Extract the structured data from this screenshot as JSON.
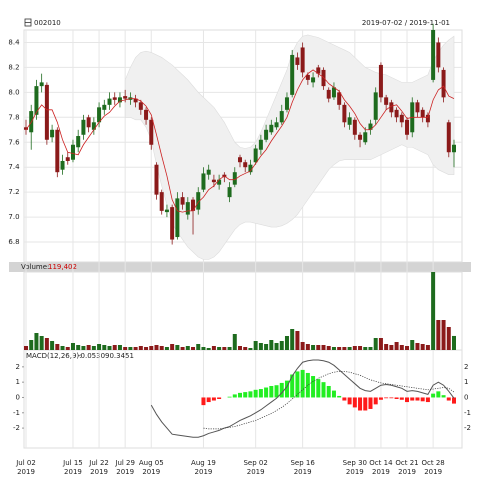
{
  "chart_data": {
    "type": "candlestick",
    "title": "002010",
    "subtitle": "2019-07-02 / 2019-11-01",
    "categories": [
      [
        "Jul 02",
        "2019"
      ],
      null,
      null,
      null,
      null,
      null,
      null,
      null,
      null,
      [
        "Jul 15",
        "2019"
      ],
      null,
      null,
      null,
      null,
      [
        "Jul 22",
        "2019"
      ],
      null,
      null,
      null,
      null,
      [
        "Jul 29",
        "2019"
      ],
      null,
      null,
      null,
      null,
      [
        "Aug 05",
        "2019"
      ],
      null,
      null,
      null,
      null,
      null,
      null,
      null,
      null,
      null,
      [
        "Aug 19",
        "2019"
      ],
      null,
      null,
      null,
      null,
      null,
      null,
      null,
      null,
      null,
      [
        "Sep 02",
        "2019"
      ],
      null,
      null,
      null,
      null,
      null,
      null,
      null,
      null,
      [
        "Sep 16",
        "2019"
      ],
      null,
      null,
      null,
      null,
      null,
      null,
      null,
      null,
      null,
      [
        "Sep 30",
        "2019"
      ],
      null,
      null,
      null,
      null,
      [
        "Oct 14",
        "2019"
      ],
      null,
      null,
      null,
      null,
      [
        "Oct 21",
        "2019"
      ],
      null,
      null,
      null,
      null,
      [
        "Oct 28",
        "2019"
      ],
      null,
      null,
      null,
      null
    ],
    "open": [
      7.72,
      7.68,
      7.82,
      8.05,
      8.06,
      7.64,
      7.7,
      7.38,
      7.48,
      7.46,
      7.56,
      7.66,
      7.8,
      7.7,
      7.76,
      7.86,
      7.9,
      7.96,
      7.92,
      7.97,
      7.94,
      7.95,
      7.92,
      7.86,
      7.78,
      7.42,
      7.2,
      7.04,
      7.08,
      6.84,
      7.16,
      7.02,
      7.14,
      7.06,
      7.22,
      7.34,
      7.3,
      7.26,
      7.34,
      7.16,
      7.26,
      7.48,
      7.44,
      7.36,
      7.44,
      7.54,
      7.62,
      7.68,
      7.72,
      7.76,
      7.86,
      7.98,
      8.28,
      8.36,
      8.14,
      8.08,
      8.2,
      8.18,
      8.02,
      7.96,
      8.0,
      7.9,
      7.74,
      7.78,
      7.66,
      7.6,
      7.7,
      7.78,
      8.22,
      7.96,
      7.92,
      7.86,
      7.82,
      7.78,
      7.68,
      7.92,
      7.86,
      7.82,
      8.1,
      8.4,
      8.18,
      7.76,
      7.52
    ],
    "high": [
      7.78,
      7.9,
      8.1,
      8.15,
      8.08,
      7.74,
      7.72,
      7.5,
      7.52,
      7.62,
      7.7,
      7.82,
      7.82,
      7.8,
      7.92,
      7.94,
      8.0,
      8.0,
      8.0,
      8.02,
      8.0,
      7.98,
      7.94,
      7.88,
      7.8,
      7.44,
      7.22,
      7.1,
      7.1,
      7.2,
      7.2,
      7.16,
      7.16,
      7.24,
      7.4,
      7.42,
      7.34,
      7.34,
      7.36,
      7.28,
      7.4,
      7.5,
      7.46,
      7.46,
      7.58,
      7.66,
      7.74,
      7.78,
      7.8,
      7.9,
      8.0,
      8.34,
      8.32,
      8.4,
      8.16,
      8.16,
      8.22,
      8.2,
      8.04,
      8.08,
      8.02,
      7.92,
      7.84,
      7.8,
      7.68,
      7.72,
      7.78,
      8.04,
      8.24,
      7.98,
      7.94,
      7.88,
      7.84,
      7.8,
      7.96,
      7.94,
      7.88,
      7.84,
      8.55,
      8.44,
      8.2,
      7.78,
      7.62
    ],
    "low": [
      7.66,
      7.54,
      7.78,
      8.0,
      7.58,
      7.6,
      7.32,
      7.34,
      7.42,
      7.44,
      7.52,
      7.62,
      7.68,
      7.66,
      7.72,
      7.82,
      7.86,
      7.9,
      7.88,
      7.92,
      7.9,
      7.88,
      7.82,
      7.74,
      7.54,
      7.14,
      7.02,
      7.0,
      6.78,
      6.82,
      7.06,
      6.98,
      6.86,
      7.02,
      7.2,
      7.3,
      7.24,
      7.22,
      7.28,
      7.12,
      7.24,
      7.4,
      7.36,
      7.34,
      7.42,
      7.5,
      7.6,
      7.66,
      7.7,
      7.74,
      7.84,
      7.96,
      8.18,
      8.12,
      8.06,
      8.04,
      8.12,
      8.02,
      7.92,
      7.94,
      7.86,
      7.72,
      7.7,
      7.62,
      7.56,
      7.58,
      7.66,
      7.74,
      7.92,
      7.86,
      7.8,
      7.76,
      7.72,
      7.62,
      7.64,
      7.8,
      7.76,
      7.72,
      8.08,
      8.16,
      7.92,
      7.48,
      7.4
    ],
    "close": [
      7.7,
      7.85,
      8.05,
      8.08,
      7.62,
      7.7,
      7.36,
      7.45,
      7.45,
      7.58,
      7.65,
      7.78,
      7.72,
      7.76,
      7.88,
      7.9,
      7.95,
      7.94,
      7.96,
      7.95,
      7.96,
      7.92,
      7.86,
      7.78,
      7.58,
      7.18,
      7.05,
      7.06,
      6.82,
      7.15,
      7.1,
      7.12,
      7.05,
      7.2,
      7.35,
      7.38,
      7.28,
      7.3,
      7.32,
      7.24,
      7.36,
      7.44,
      7.4,
      7.42,
      7.55,
      7.62,
      7.7,
      7.74,
      7.76,
      7.85,
      7.96,
      8.3,
      8.22,
      8.16,
      8.1,
      8.12,
      8.15,
      8.05,
      7.95,
      8.04,
      7.9,
      7.76,
      7.8,
      7.66,
      7.62,
      7.68,
      7.75,
      8.0,
      7.96,
      7.9,
      7.84,
      7.8,
      7.76,
      7.66,
      7.92,
      7.84,
      7.8,
      7.76,
      8.5,
      8.2,
      7.96,
      7.52,
      7.58
    ],
    "ma": [
      7.7,
      7.76,
      7.84,
      7.9,
      7.86,
      7.86,
      7.76,
      7.62,
      7.52,
      7.51,
      7.5,
      7.58,
      7.64,
      7.7,
      7.76,
      7.81,
      7.84,
      7.89,
      7.93,
      7.94,
      7.95,
      7.95,
      7.93,
      7.89,
      7.82,
      7.66,
      7.49,
      7.33,
      7.14,
      7.05,
      7.04,
      7.05,
      7.05,
      7.12,
      7.16,
      7.22,
      7.25,
      7.3,
      7.33,
      7.3,
      7.3,
      7.33,
      7.35,
      7.37,
      7.43,
      7.49,
      7.54,
      7.61,
      7.67,
      7.73,
      7.8,
      7.92,
      8.02,
      8.1,
      8.15,
      8.18,
      8.15,
      8.12,
      8.07,
      8.04,
      8.01,
      7.94,
      7.89,
      7.83,
      7.75,
      7.7,
      7.7,
      7.74,
      7.8,
      7.86,
      7.89,
      7.9,
      7.85,
      7.79,
      7.8,
      7.8,
      7.8,
      7.8,
      7.94,
      8.02,
      8.05,
      7.97,
      7.95
    ],
    "band_upper": [
      null,
      null,
      null,
      null,
      null,
      null,
      null,
      null,
      null,
      null,
      null,
      null,
      null,
      null,
      null,
      null,
      null,
      null,
      null,
      8.1,
      8.2,
      8.28,
      8.32,
      8.33,
      8.32,
      8.3,
      8.28,
      8.25,
      8.22,
      8.18,
      8.14,
      8.1,
      8.05,
      8.0,
      7.96,
      7.92,
      7.88,
      7.82,
      7.76,
      7.68,
      7.6,
      7.56,
      7.55,
      7.56,
      7.6,
      7.68,
      7.78,
      7.88,
      7.98,
      8.08,
      8.18,
      8.32,
      8.4,
      8.45,
      8.46,
      8.45,
      8.44,
      8.42,
      8.4,
      8.38,
      8.36,
      8.34,
      8.32,
      8.28,
      8.24,
      8.2,
      8.18,
      8.16,
      8.15,
      8.14,
      8.12,
      8.1,
      8.08,
      8.08,
      8.08,
      8.1,
      8.12,
      8.14,
      8.25,
      8.32,
      8.38,
      8.42,
      8.45
    ],
    "band_lower": [
      null,
      null,
      null,
      null,
      null,
      null,
      null,
      null,
      null,
      null,
      null,
      null,
      null,
      null,
      null,
      null,
      null,
      null,
      null,
      7.8,
      7.8,
      7.78,
      7.78,
      7.72,
      7.62,
      7.42,
      7.25,
      7.1,
      6.95,
      6.88,
      6.82,
      6.76,
      6.72,
      6.68,
      6.66,
      6.66,
      6.68,
      6.72,
      6.78,
      6.84,
      6.9,
      6.94,
      6.96,
      6.96,
      6.95,
      6.94,
      6.93,
      6.92,
      6.92,
      6.93,
      6.95,
      6.98,
      7.02,
      7.08,
      7.14,
      7.2,
      7.26,
      7.32,
      7.38,
      7.42,
      7.45,
      7.46,
      7.46,
      7.46,
      7.46,
      7.46,
      7.46,
      7.48,
      7.5,
      7.52,
      7.54,
      7.56,
      7.58,
      7.56,
      7.56,
      7.54,
      7.52,
      7.5,
      7.42,
      7.38,
      7.36,
      7.34,
      7.34
    ],
    "ylim": [
      6.64,
      8.5
    ],
    "yticks": [
      6.8,
      {
        "value": 7,
        "label": "7.0"
      },
      7.2,
      7.4,
      7.6,
      7.8,
      {
        "value": 8,
        "label": "8.0"
      },
      8.2,
      8.4
    ],
    "up_color": "#1e6b1e",
    "down_color": "#8b1a1a",
    "ma_color": "#cc2222",
    "band_color": "#f0f0f0",
    "grid": true,
    "volume_label": "Volume:",
    "volume_current": "119,402",
    "volume": [
      34000,
      85000,
      144500,
      119000,
      102000,
      76500,
      51000,
      34000,
      25500,
      59500,
      42500,
      34000,
      42500,
      34000,
      51000,
      42500,
      34000,
      42500,
      42500,
      25500,
      25500,
      25500,
      34000,
      25500,
      34000,
      42500,
      34000,
      25500,
      51000,
      42500,
      25500,
      34000,
      25500,
      51000,
      25500,
      17000,
      34000,
      25500,
      25500,
      25500,
      136000,
      34000,
      25500,
      17000,
      76500,
      59500,
      51000,
      85000,
      59500,
      76500,
      119000,
      178500,
      161500,
      68000,
      51000,
      42500,
      42500,
      42500,
      34000,
      25500,
      25500,
      25500,
      25500,
      34000,
      34000,
      25500,
      25500,
      102000,
      102000,
      51000,
      42500,
      68000,
      42500,
      34000,
      85000,
      59500,
      51000,
      42500,
      663000,
      255000,
      255000,
      195500,
      119402
    ],
    "volume_lim": [
      0,
      663000
    ],
    "macd_label": "MACD(12,26,9):",
    "macd_current": "-0.053090.3451",
    "dif": [
      null,
      null,
      null,
      null,
      null,
      null,
      null,
      null,
      null,
      null,
      null,
      null,
      null,
      null,
      null,
      null,
      null,
      null,
      null,
      null,
      null,
      null,
      null,
      null,
      -0.5,
      -1.1,
      -1.6,
      -2.0,
      -2.4,
      -2.45,
      -2.5,
      -2.55,
      -2.6,
      -2.6,
      -2.5,
      -2.35,
      -2.25,
      -2.15,
      -2.0,
      -1.9,
      -1.7,
      -1.5,
      -1.35,
      -1.2,
      -1.0,
      -0.8,
      -0.55,
      -0.3,
      -0.05,
      0.3,
      0.7,
      1.4,
      1.9,
      2.3,
      2.4,
      2.45,
      2.45,
      2.4,
      2.3,
      2.1,
      1.8,
      1.5,
      1.2,
      0.9,
      0.6,
      0.45,
      0.4,
      0.6,
      0.8,
      0.85,
      0.8,
      0.7,
      0.6,
      0.4,
      0.45,
      0.4,
      0.3,
      0.2,
      0.8,
      1.0,
      0.8,
      0.4,
      -0.05
    ],
    "dea": [
      null,
      null,
      null,
      null,
      null,
      null,
      null,
      null,
      null,
      null,
      null,
      null,
      null,
      null,
      null,
      null,
      null,
      null,
      null,
      null,
      null,
      null,
      null,
      null,
      null,
      null,
      null,
      null,
      null,
      null,
      null,
      null,
      null,
      null,
      -2.0,
      -2.05,
      -2.05,
      -2.05,
      -2.0,
      -1.95,
      -1.9,
      -1.8,
      -1.7,
      -1.6,
      -1.5,
      -1.35,
      -1.2,
      -1.05,
      -0.85,
      -0.65,
      -0.4,
      -0.1,
      0.2,
      0.5,
      0.8,
      1.05,
      1.25,
      1.4,
      1.55,
      1.65,
      1.7,
      1.7,
      1.65,
      1.55,
      1.45,
      1.3,
      1.15,
      1.05,
      0.95,
      0.9,
      0.85,
      0.8,
      0.75,
      0.7,
      0.65,
      0.6,
      0.55,
      0.5,
      0.55,
      0.6,
      0.65,
      0.6,
      0.35
    ],
    "hist": [
      null,
      null,
      null,
      null,
      null,
      null,
      null,
      null,
      null,
      null,
      null,
      null,
      null,
      null,
      null,
      null,
      null,
      null,
      null,
      null,
      null,
      null,
      null,
      null,
      null,
      null,
      null,
      null,
      null,
      null,
      null,
      null,
      null,
      null,
      -0.5,
      -0.3,
      -0.2,
      -0.1,
      0,
      0.05,
      0.2,
      0.3,
      0.35,
      0.4,
      0.5,
      0.55,
      0.65,
      0.75,
      0.8,
      0.95,
      1.1,
      1.5,
      1.7,
      1.8,
      1.6,
      1.4,
      1.2,
      1.0,
      0.75,
      0.45,
      0.1,
      -0.2,
      -0.45,
      -0.65,
      -0.85,
      -0.85,
      -0.75,
      -0.45,
      -0.15,
      -0.05,
      -0.05,
      -0.1,
      -0.15,
      -0.3,
      -0.2,
      -0.2,
      -0.25,
      -0.3,
      0.25,
      0.4,
      0.15,
      -0.2,
      -0.4
    ],
    "hist_up_color": "#22ee22",
    "hist_down_color": "#ff1a1a",
    "dif_color": "#555555",
    "dea_color": "#333333",
    "macd_ylim": [
      -3.3,
      3.1
    ],
    "macd_yticks": [
      2,
      1,
      0,
      -1,
      -2
    ]
  }
}
